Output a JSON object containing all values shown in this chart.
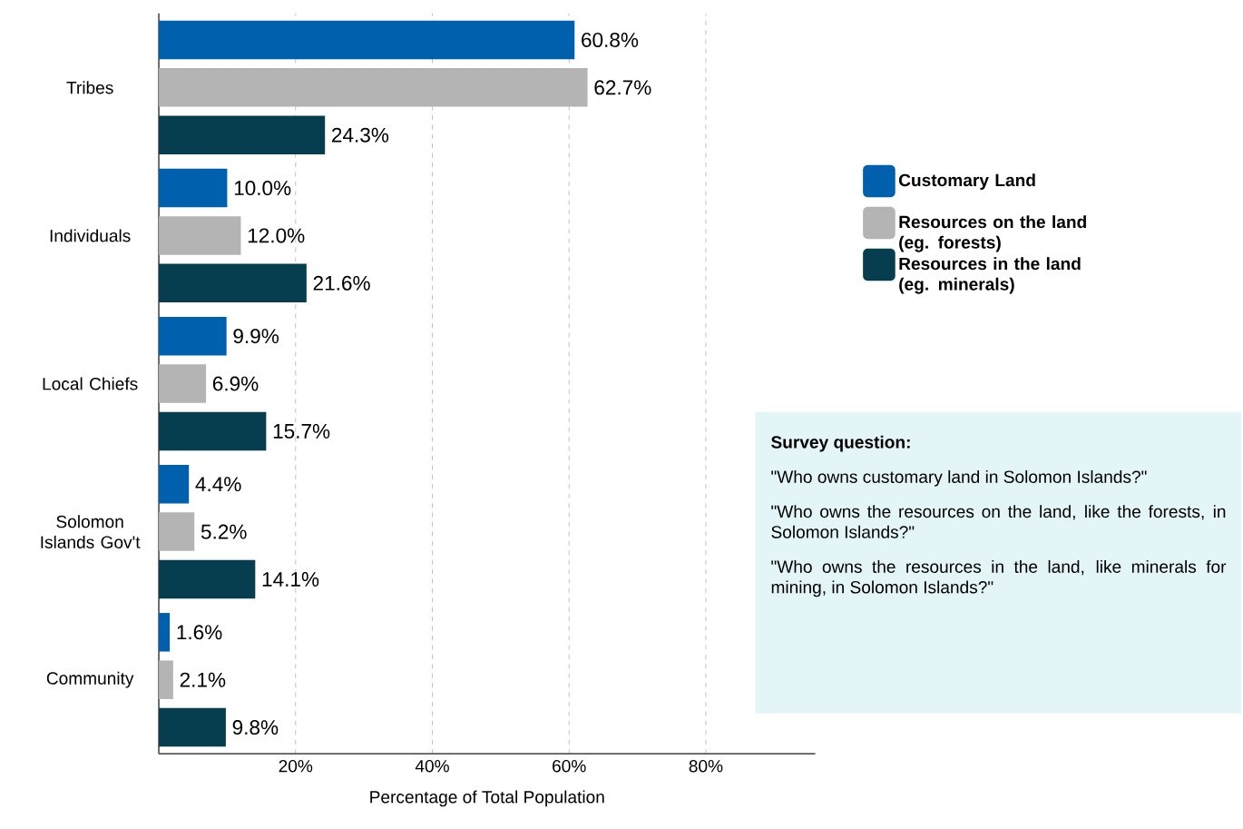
{
  "chart_data": {
    "type": "bar",
    "orientation": "horizontal",
    "xlabel": "Percentage of Total Population",
    "categories": [
      "Tribes",
      "Individuals",
      "Local Chiefs",
      "Solomon Islands Gov't",
      "Community"
    ],
    "series": [
      {
        "name": "Customary Land",
        "color": "#0060ae",
        "values": [
          60.8,
          10.0,
          9.9,
          4.4,
          1.6
        ],
        "value_labels": [
          "60.8%",
          "10.0%",
          "9.9%",
          "4.4%",
          "1.6%"
        ]
      },
      {
        "name": "Resources on the land (eg. forests)",
        "color": "#b4b4b4",
        "values": [
          62.7,
          12.0,
          6.9,
          5.2,
          2.1
        ],
        "value_labels": [
          "62.7%",
          "12.0%",
          "6.9%",
          "5.2%",
          "2.1%"
        ]
      },
      {
        "name": "Resources in the land (eg. minerals)",
        "color": "#063d4f",
        "values": [
          24.3,
          21.6,
          15.7,
          14.1,
          9.8
        ],
        "value_labels": [
          "24.3%",
          "21.6%",
          "15.7%",
          "14.1%",
          "9.8%"
        ]
      }
    ],
    "xlim": [
      0,
      96
    ],
    "xticks": [
      {
        "value": 20,
        "label": "20%"
      },
      {
        "value": 40,
        "label": "40%"
      },
      {
        "value": 60,
        "label": "60%"
      },
      {
        "value": 80,
        "label": "80%"
      }
    ],
    "grid": "x",
    "legend": "right",
    "annotations": [
      "Survey question:",
      "\"Who owns customary land in Solomon Islands?\"",
      "\"Who owns the resources on the land, like the forests, in Solomon Islands?\"",
      "\"Who owns the resources in the land, like minerals for mining, in Solomon Islands?\""
    ]
  }
}
